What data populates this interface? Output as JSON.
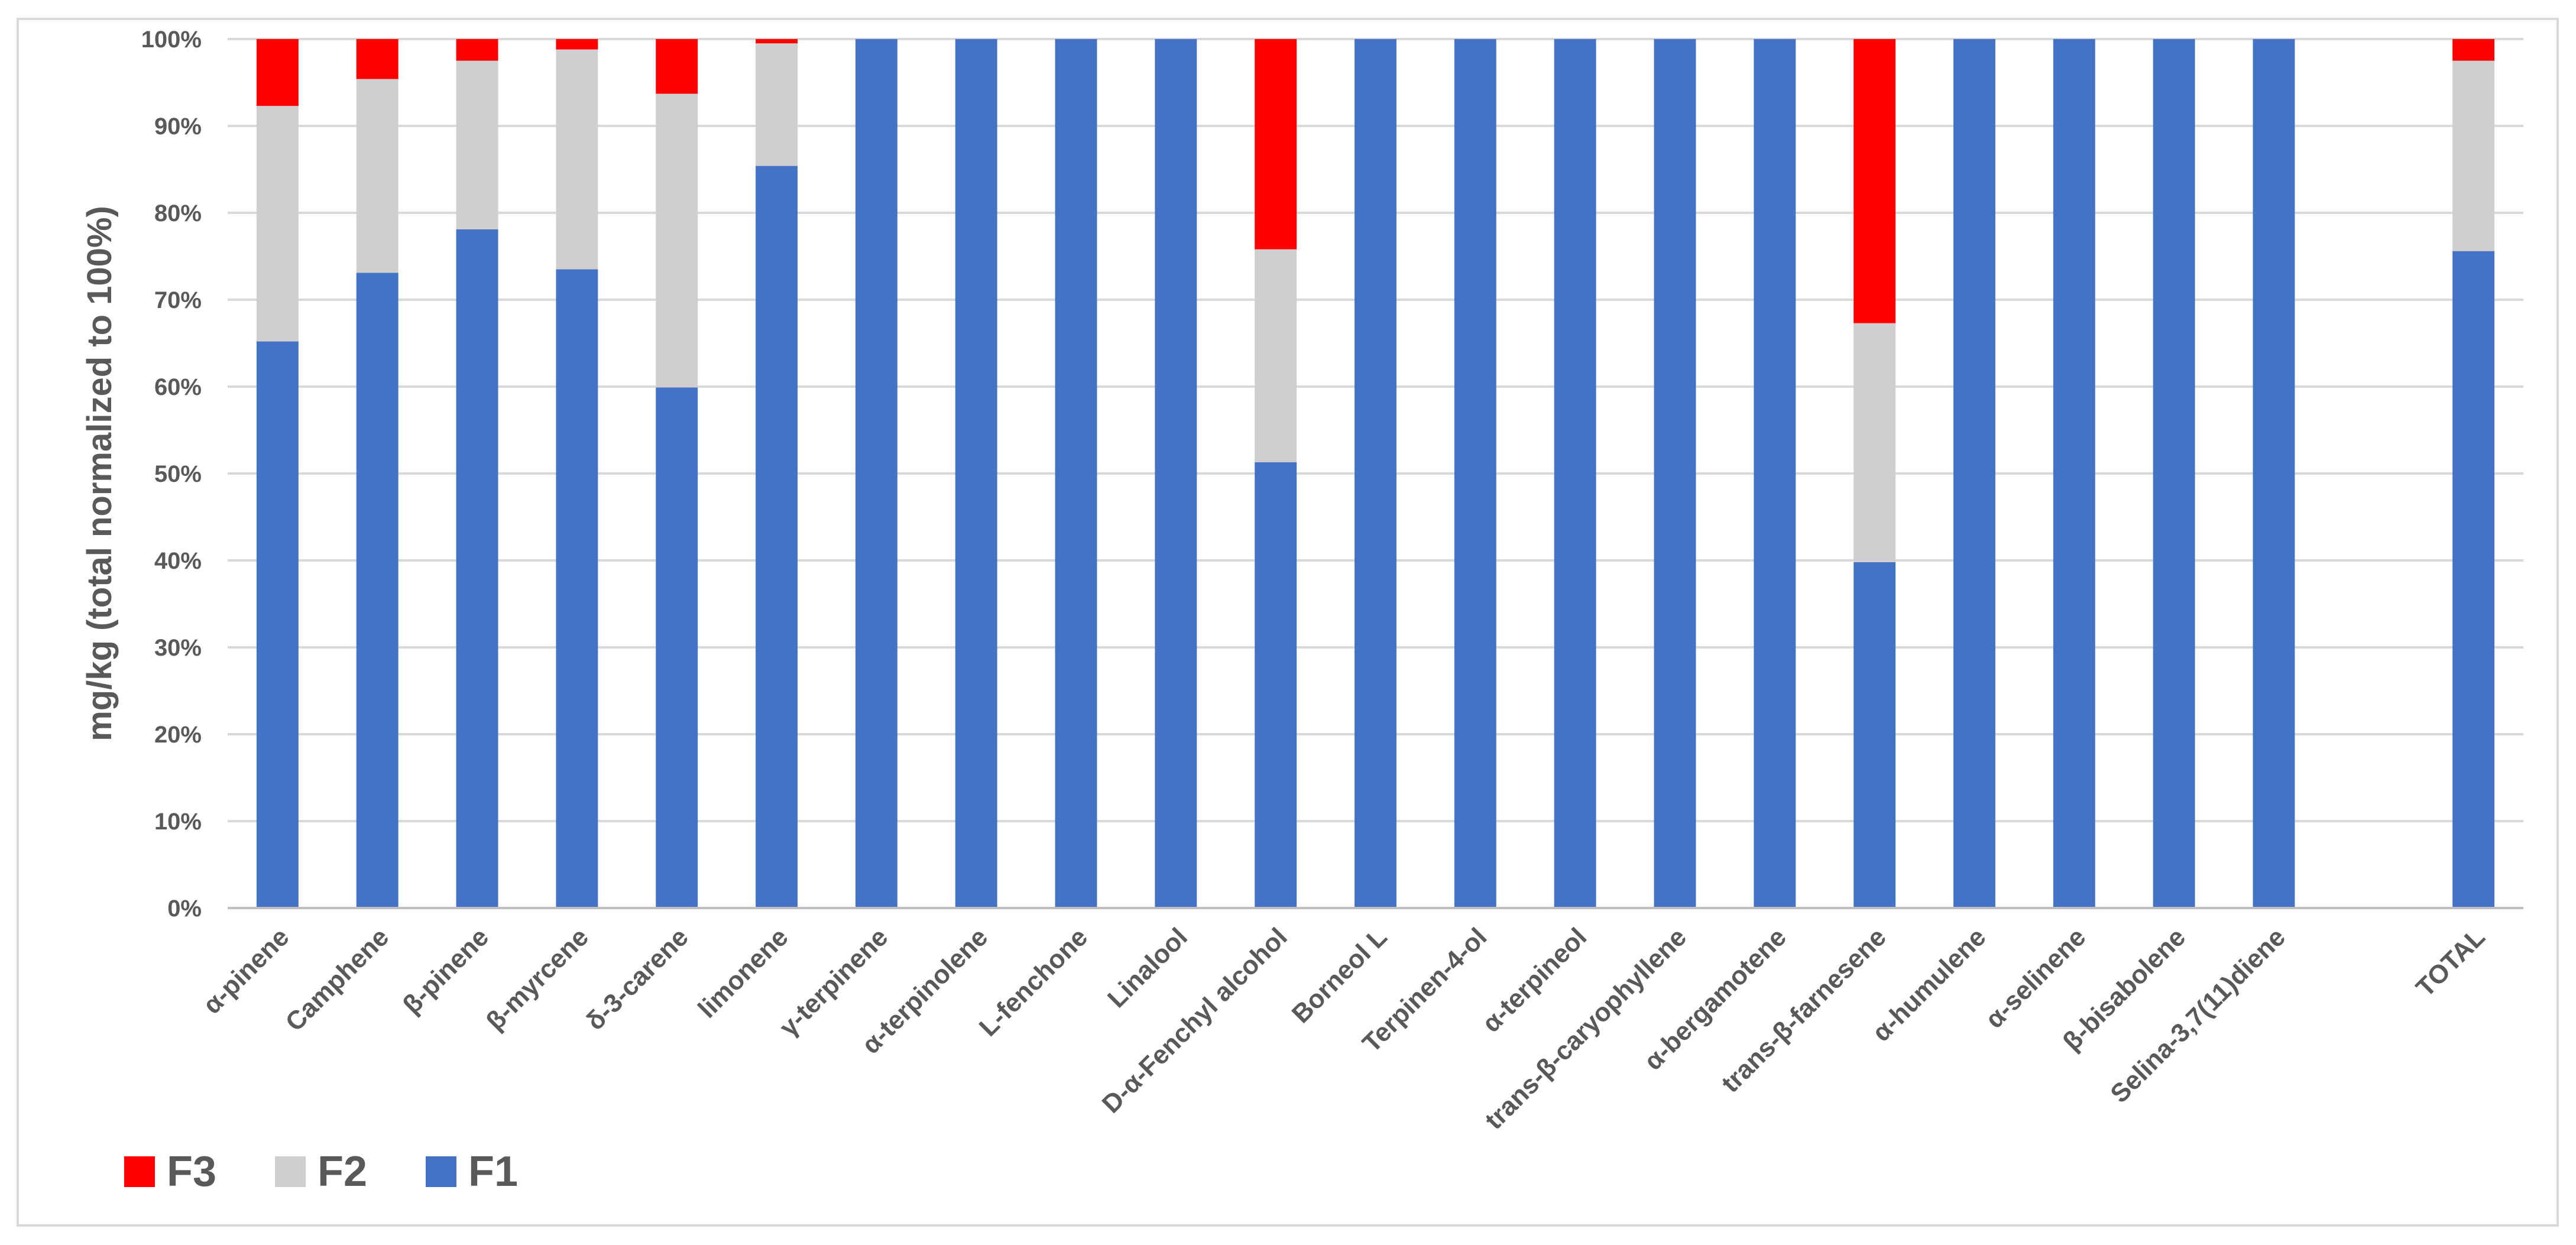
{
  "chart_data": {
    "type": "bar",
    "stacked": true,
    "normalized": true,
    "title": "",
    "xlabel": "",
    "ylabel": "mg/kg (total normalized to 100%)",
    "ylim": [
      0,
      100
    ],
    "yticks": [
      "0%",
      "10%",
      "20%",
      "30%",
      "40%",
      "50%",
      "60%",
      "70%",
      "80%",
      "90%",
      "100%"
    ],
    "grid": true,
    "legend_position": "bottom-left",
    "categories": [
      "α-pinene",
      "Camphene",
      "β-pinene",
      "β-myrcene",
      "δ-3-carene",
      "limonene",
      "γ-terpinene",
      "α-terpinolene",
      "L-fenchone",
      "Linalool",
      "D-α-Fenchyl alcohol",
      "Borneol L",
      "Terpinen-4-ol",
      "α-terpineol",
      "trans-β-caryophyllene",
      "α-bergamotene",
      "trans-β-farnesene",
      "α-humulene",
      "α-selinene",
      "β-bisabolene",
      "Selina-3,7(11)diene",
      "",
      "TOTAL"
    ],
    "series": [
      {
        "name": "F1",
        "color": "#4472c4",
        "values": [
          65.2,
          73.1,
          78.1,
          73.5,
          59.9,
          85.4,
          100,
          100,
          100,
          100,
          51.3,
          100,
          100,
          100,
          100,
          100,
          39.8,
          100,
          100,
          100,
          100,
          null,
          75.6
        ]
      },
      {
        "name": "F2",
        "color": "#d0cece",
        "values": [
          27.1,
          22.3,
          19.4,
          25.3,
          33.8,
          14.1,
          0,
          0,
          0,
          0,
          24.5,
          0,
          0,
          0,
          0,
          0,
          27.5,
          0,
          0,
          0,
          0,
          null,
          21.9
        ]
      },
      {
        "name": "F3",
        "color": "#ff0000",
        "values": [
          7.7,
          4.6,
          2.5,
          1.2,
          6.3,
          0.5,
          0,
          0,
          0,
          0,
          24.2,
          0,
          0,
          0,
          0,
          0,
          32.7,
          0,
          0,
          0,
          0,
          null,
          2.5
        ]
      }
    ],
    "legend": [
      {
        "name": "F3",
        "color": "#ff0000"
      },
      {
        "name": "F2",
        "color": "#d0cece"
      },
      {
        "name": "F1",
        "color": "#4472c4"
      }
    ]
  }
}
